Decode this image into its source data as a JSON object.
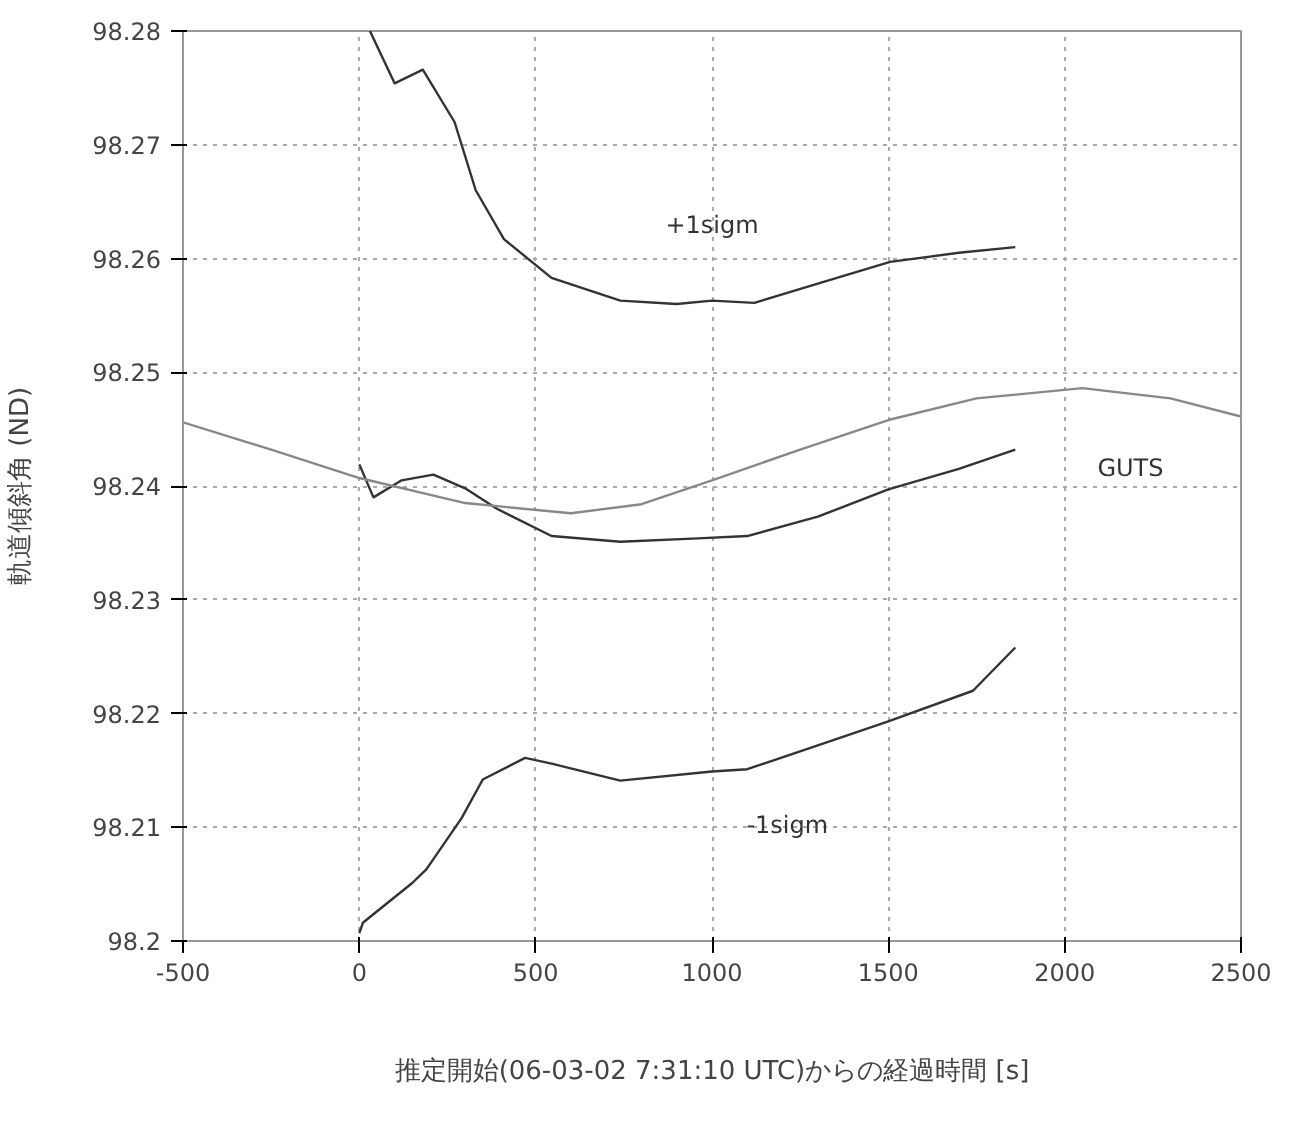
{
  "chart_data": {
    "type": "line",
    "xlabel": "推定開始(06-03-02 7:31:10 UTC)からの経過時間 [s]",
    "ylabel": "軌道傾斜角 (ND)",
    "xlim": [
      -500,
      2500
    ],
    "ylim": [
      98.2,
      98.28
    ],
    "xticks": [
      -500,
      0,
      500,
      1000,
      1500,
      2000,
      2500
    ],
    "yticks": [
      98.2,
      98.21,
      98.22,
      98.23,
      98.24,
      98.25,
      98.26,
      98.27,
      98.28
    ],
    "grid": true,
    "line_style": "solid",
    "marker": "none",
    "series": [
      {
        "name": "+1sigm",
        "color": "#333333",
        "x": [
          30,
          100,
          180,
          270,
          330,
          410,
          545,
          740,
          900,
          1000,
          1120,
          1300,
          1505,
          1700,
          1860
        ],
        "values": [
          98.28,
          98.2754,
          98.2766,
          98.272,
          98.266,
          98.2617,
          98.2583,
          98.2563,
          98.256,
          98.2563,
          98.2561,
          98.2578,
          98.2597,
          98.2605,
          98.261
        ]
      },
      {
        "color": "#333333",
        "x": [
          0,
          40,
          120,
          210,
          300,
          390,
          545,
          740,
          960,
          1100,
          1300,
          1500,
          1700,
          1860
        ],
        "values": [
          98.2419,
          98.239,
          98.2405,
          98.241,
          98.2398,
          98.238,
          98.2356,
          98.2351,
          98.2354,
          98.2356,
          98.2373,
          98.2397,
          98.2415,
          98.2432
        ]
      },
      {
        "name": "GUTS",
        "color": "#888888",
        "x": [
          -500,
          -250,
          0,
          300,
          600,
          800,
          1000,
          1250,
          1500,
          1750,
          2050,
          2300,
          2500
        ],
        "values": [
          98.2456,
          98.2432,
          98.2407,
          98.2385,
          98.2376,
          98.2384,
          98.2405,
          98.2432,
          98.2458,
          98.2477,
          98.2486,
          98.2477,
          98.2461
        ]
      },
      {
        "name": "-1sigm",
        "color": "#333333",
        "x": [
          0,
          10,
          150,
          190,
          290,
          350,
          470,
          545,
          740,
          1000,
          1100,
          1300,
          1500,
          1740,
          1860
        ],
        "values": [
          98.2007,
          98.2016,
          98.2051,
          98.2063,
          98.2108,
          98.2142,
          98.2161,
          98.2156,
          98.2141,
          98.2149,
          98.2151,
          98.2172,
          98.2193,
          98.222,
          98.2258
        ]
      }
    ]
  }
}
